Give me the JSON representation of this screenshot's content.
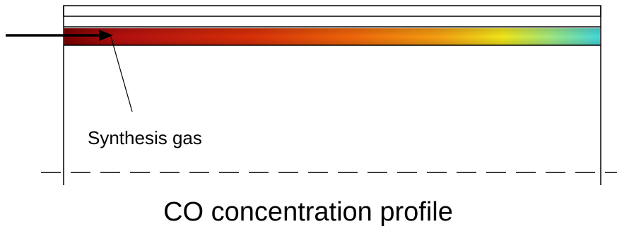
{
  "annotation": {
    "inlet_label": "Synthesis gas"
  },
  "caption": "CO concentration profile",
  "colors": {
    "frame_line": "#000000",
    "inlet_arrow": "#000000",
    "gradient_stops": [
      "#8b0000",
      "#b30f0f",
      "#d93a0a",
      "#f0730a",
      "#f5c01a",
      "#e8f51a",
      "#a6f07a",
      "#4ddcd6"
    ]
  }
}
